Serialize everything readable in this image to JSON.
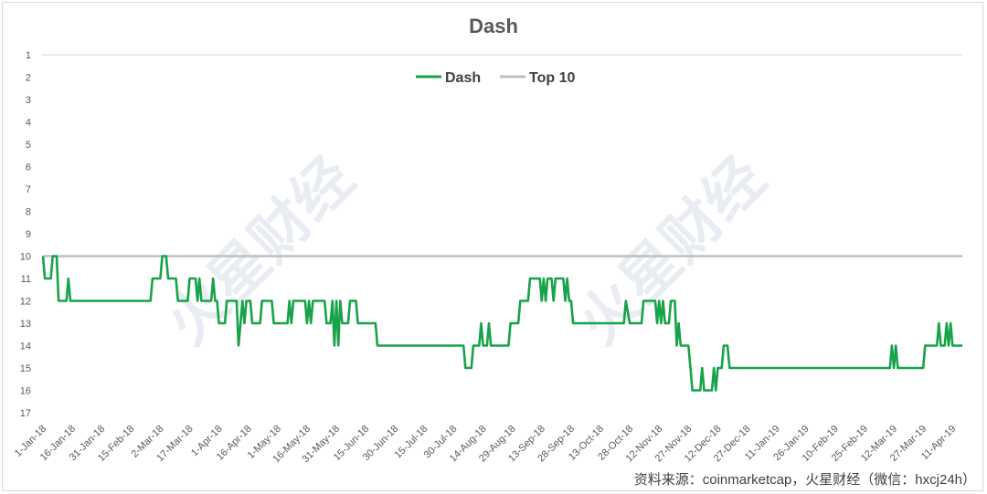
{
  "chart_data": {
    "type": "line",
    "title": "Dash",
    "xlabel": "",
    "ylabel": "",
    "ylim": [
      1,
      17
    ],
    "y_inverted": true,
    "grid": false,
    "legend_position": "top-center",
    "x_start": "1-Jan-18",
    "x_end": "16-Apr-19",
    "x_tick_labels": [
      "1-Jan-18",
      "16-Jan-18",
      "31-Jan-18",
      "15-Feb-18",
      "2-Mar-18",
      "17-Mar-18",
      "1-Apr-18",
      "16-Apr-18",
      "1-May-18",
      "16-May-18",
      "31-May-18",
      "15-Jun-18",
      "30-Jun-18",
      "15-Jul-18",
      "30-Jul-18",
      "14-Aug-18",
      "29-Aug-18",
      "13-Sep-18",
      "28-Sep-18",
      "13-Oct-18",
      "28-Oct-18",
      "12-Nov-18",
      "27-Nov-18",
      "12-Dec-18",
      "27-Dec-18",
      "11-Jan-19",
      "26-Jan-19",
      "10-Feb-19",
      "25-Feb-19",
      "12-Mar-19",
      "27-Mar-19",
      "11-Apr-19"
    ],
    "y_tick_labels": [
      "1",
      "2",
      "3",
      "4",
      "5",
      "6",
      "7",
      "8",
      "9",
      "10",
      "11",
      "12",
      "13",
      "14",
      "15",
      "16",
      "17"
    ],
    "series": [
      {
        "name": "Dash",
        "color": "#17a349",
        "points": [
          [
            "1-Jan-18",
            10
          ],
          [
            "2-Jan-18",
            11
          ],
          [
            "5-Jan-18",
            11
          ],
          [
            "6-Jan-18",
            10
          ],
          [
            "8-Jan-18",
            10
          ],
          [
            "9-Jan-18",
            12
          ],
          [
            "13-Jan-18",
            12
          ],
          [
            "14-Jan-18",
            11
          ],
          [
            "15-Jan-18",
            12
          ],
          [
            "25-Feb-18",
            12
          ],
          [
            "26-Feb-18",
            11
          ],
          [
            "2-Mar-18",
            11
          ],
          [
            "3-Mar-18",
            10
          ],
          [
            "5-Mar-18",
            10
          ],
          [
            "6-Mar-18",
            11
          ],
          [
            "10-Mar-18",
            11
          ],
          [
            "11-Mar-18",
            12
          ],
          [
            "16-Mar-18",
            12
          ],
          [
            "17-Mar-18",
            11
          ],
          [
            "20-Mar-18",
            11
          ],
          [
            "21-Mar-18",
            12
          ],
          [
            "22-Mar-18",
            11
          ],
          [
            "23-Mar-18",
            12
          ],
          [
            "28-Mar-18",
            12
          ],
          [
            "29-Mar-18",
            11
          ],
          [
            "30-Mar-18",
            12
          ],
          [
            "31-Mar-18",
            12
          ],
          [
            "1-Apr-18",
            13
          ],
          [
            "4-Apr-18",
            13
          ],
          [
            "5-Apr-18",
            12
          ],
          [
            "10-Apr-18",
            12
          ],
          [
            "11-Apr-18",
            14
          ],
          [
            "12-Apr-18",
            13
          ],
          [
            "13-Apr-18",
            12
          ],
          [
            "14-Apr-18",
            13
          ],
          [
            "15-Apr-18",
            12
          ],
          [
            "17-Apr-18",
            12
          ],
          [
            "18-Apr-18",
            13
          ],
          [
            "22-Apr-18",
            13
          ],
          [
            "23-Apr-18",
            12
          ],
          [
            "28-Apr-18",
            12
          ],
          [
            "29-Apr-18",
            13
          ],
          [
            "6-May-18",
            13
          ],
          [
            "7-May-18",
            12
          ],
          [
            "8-May-18",
            13
          ],
          [
            "9-May-18",
            12
          ],
          [
            "15-May-18",
            12
          ],
          [
            "16-May-18",
            13
          ],
          [
            "17-May-18",
            12
          ],
          [
            "18-May-18",
            13
          ],
          [
            "19-May-18",
            12
          ],
          [
            "25-May-18",
            12
          ],
          [
            "26-May-18",
            13
          ],
          [
            "28-May-18",
            13
          ],
          [
            "29-May-18",
            12
          ],
          [
            "30-May-18",
            14
          ],
          [
            "31-May-18",
            12
          ],
          [
            "1-Jun-18",
            14
          ],
          [
            "2-Jun-18",
            12
          ],
          [
            "3-Jun-18",
            13
          ],
          [
            "6-Jun-18",
            13
          ],
          [
            "7-Jun-18",
            12
          ],
          [
            "10-Jun-18",
            12
          ],
          [
            "11-Jun-18",
            13
          ],
          [
            "20-Jun-18",
            13
          ],
          [
            "21-Jun-18",
            14
          ],
          [
            "4-Aug-18",
            14
          ],
          [
            "5-Aug-18",
            15
          ],
          [
            "8-Aug-18",
            15
          ],
          [
            "9-Aug-18",
            14
          ],
          [
            "12-Aug-18",
            14
          ],
          [
            "13-Aug-18",
            13
          ],
          [
            "14-Aug-18",
            14
          ],
          [
            "16-Aug-18",
            14
          ],
          [
            "17-Aug-18",
            13
          ],
          [
            "18-Aug-18",
            14
          ],
          [
            "27-Aug-18",
            14
          ],
          [
            "28-Aug-18",
            13
          ],
          [
            "1-Sep-18",
            13
          ],
          [
            "2-Sep-18",
            12
          ],
          [
            "6-Sep-18",
            12
          ],
          [
            "7-Sep-18",
            11
          ],
          [
            "12-Sep-18",
            11
          ],
          [
            "13-Sep-18",
            12
          ],
          [
            "14-Sep-18",
            11
          ],
          [
            "15-Sep-18",
            12
          ],
          [
            "16-Sep-18",
            11
          ],
          [
            "18-Sep-18",
            11
          ],
          [
            "19-Sep-18",
            12
          ],
          [
            "20-Sep-18",
            11
          ],
          [
            "24-Sep-18",
            11
          ],
          [
            "25-Sep-18",
            12
          ],
          [
            "26-Sep-18",
            11
          ],
          [
            "27-Sep-18",
            12
          ],
          [
            "28-Sep-18",
            12
          ],
          [
            "29-Sep-18",
            13
          ],
          [
            "25-Oct-18",
            13
          ],
          [
            "26-Oct-18",
            12
          ],
          [
            "28-Oct-18",
            13
          ],
          [
            "3-Nov-18",
            13
          ],
          [
            "4-Nov-18",
            12
          ],
          [
            "10-Nov-18",
            12
          ],
          [
            "11-Nov-18",
            13
          ],
          [
            "12-Nov-18",
            12
          ],
          [
            "13-Nov-18",
            13
          ],
          [
            "14-Nov-18",
            12
          ],
          [
            "15-Nov-18",
            13
          ],
          [
            "17-Nov-18",
            13
          ],
          [
            "18-Nov-18",
            12
          ],
          [
            "20-Nov-18",
            12
          ],
          [
            "21-Nov-18",
            14
          ],
          [
            "22-Nov-18",
            13
          ],
          [
            "23-Nov-18",
            14
          ],
          [
            "27-Nov-18",
            14
          ],
          [
            "28-Nov-18",
            15
          ],
          [
            "29-Nov-18",
            16
          ],
          [
            "3-Dec-18",
            16
          ],
          [
            "4-Dec-18",
            15
          ],
          [
            "5-Dec-18",
            16
          ],
          [
            "9-Dec-18",
            16
          ],
          [
            "10-Dec-18",
            15
          ],
          [
            "11-Dec-18",
            16
          ],
          [
            "12-Dec-18",
            15
          ],
          [
            "14-Dec-18",
            15
          ],
          [
            "15-Dec-18",
            14
          ],
          [
            "17-Dec-18",
            14
          ],
          [
            "18-Dec-18",
            15
          ],
          [
            "10-Mar-19",
            15
          ],
          [
            "11-Mar-19",
            14
          ],
          [
            "12-Mar-19",
            15
          ],
          [
            "13-Mar-19",
            14
          ],
          [
            "14-Mar-19",
            15
          ],
          [
            "27-Mar-19",
            15
          ],
          [
            "28-Mar-19",
            14
          ],
          [
            "3-Apr-19",
            14
          ],
          [
            "4-Apr-19",
            13
          ],
          [
            "5-Apr-19",
            14
          ],
          [
            "7-Apr-19",
            14
          ],
          [
            "8-Apr-19",
            13
          ],
          [
            "9-Apr-19",
            14
          ],
          [
            "10-Apr-19",
            13
          ],
          [
            "11-Apr-19",
            14
          ],
          [
            "16-Apr-19",
            14
          ]
        ]
      },
      {
        "name": "Top 10",
        "color": "#bfbfbf",
        "points": [
          [
            "1-Jan-18",
            10
          ],
          [
            "16-Apr-19",
            10
          ]
        ]
      }
    ]
  },
  "watermark": "火星财经",
  "source_caption": "资料来源：coinmarketcap，火星财经（微信：hxcj24h）"
}
